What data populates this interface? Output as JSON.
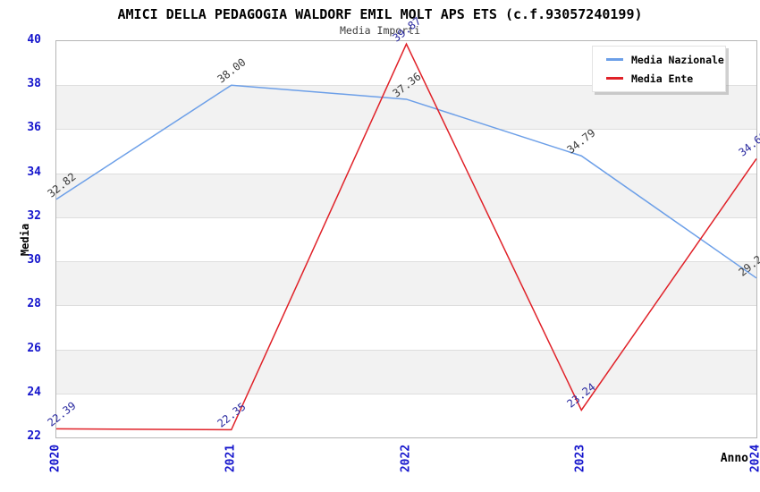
{
  "chart_data": {
    "type": "line",
    "title": "AMICI DELLA PEDAGOGIA WALDORF EMIL MOLT APS ETS (c.f.93057240199)",
    "subtitle": "Media Importi",
    "xlabel": "Anno",
    "ylabel": "Media",
    "categories": [
      "2020",
      "2021",
      "2022",
      "2023",
      "2024"
    ],
    "series": [
      {
        "name": "Media Nazionale",
        "values": [
          32.82,
          38.0,
          37.36,
          34.79,
          29.24
        ],
        "color": "#6c9fe8",
        "label_color": "#3a3a3a"
      },
      {
        "name": "Media Ente",
        "values": [
          22.39,
          22.35,
          39.87,
          23.24,
          34.66
        ],
        "color": "#e02128",
        "label_color": "#2a2aa0"
      }
    ],
    "ylim": [
      22,
      40
    ],
    "ytick_step": 2,
    "yticks": [
      22,
      24,
      26,
      28,
      30,
      32,
      34,
      36,
      38,
      40
    ],
    "grid": true,
    "legend_position": "top-right",
    "colors": {
      "band_alt": "#f2f2f2",
      "grid": "#dedede",
      "axis_border": "#b6b6b6",
      "tick_label": "#1414cc",
      "axis_title": "#000000"
    }
  }
}
